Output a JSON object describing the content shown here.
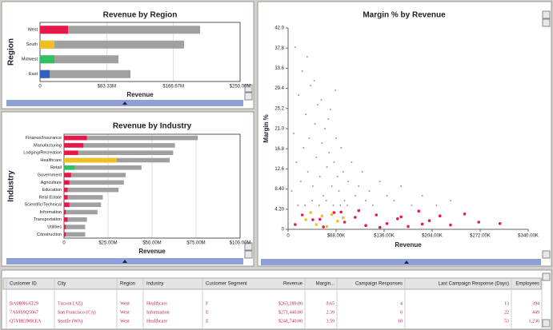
{
  "region_chart": {
    "type": "bar",
    "title": "Revenue by Region",
    "y_label": "Region",
    "x_label": "Revenue",
    "categories": [
      "West",
      "South",
      "Midwest",
      "East"
    ],
    "values": [
      200,
      180,
      98,
      113
    ],
    "color": "#a0a0a0",
    "highlight_values": [
      35,
      18,
      18,
      12
    ],
    "highlight_colors": [
      "#e8174b",
      "#f0c020",
      "#30c060",
      "#3060c0"
    ],
    "xlim": [
      0,
      250
    ],
    "xticks": [
      0,
      {
        "value": 83.33,
        "label": "$83.33M"
      },
      {
        "value": 166.67,
        "label": "$166.67M"
      },
      {
        "value": 250,
        "label": "$250.00M"
      }
    ]
  },
  "industry_chart": {
    "type": "bar",
    "title": "Revenue by Industry",
    "y_label": "Industry",
    "x_label": "Revenue",
    "categories": [
      "Finance/Insurance",
      "Manufacturing",
      "Lodging/Recreation",
      "Healthcare",
      "Retail",
      "Government",
      "Agriculture",
      "Education",
      "Real Estate",
      "Scientific/Technical",
      "Information",
      "Transportation",
      "Utilities",
      "Construction"
    ],
    "values": [
      76,
      63,
      62,
      60,
      44,
      35,
      34,
      31,
      22,
      21,
      19,
      13,
      12,
      12
    ],
    "color": "#a0a0a0",
    "highlight_values": [
      13,
      11,
      8,
      30,
      6,
      4,
      3,
      2,
      2,
      3,
      1,
      2,
      1,
      1
    ],
    "highlight_colors": [
      "#e8174b",
      "#e8174b",
      "#e8174b",
      "#f0c020",
      "#30c060",
      "#e8174b",
      "#e8174b",
      "#e8174b",
      "#e8174b",
      "#e8174b",
      "#e8174b",
      "#e8174b",
      "#e8174b",
      "#e8174b"
    ],
    "xlim": [
      0,
      100
    ],
    "xticks": [
      0,
      {
        "value": 25,
        "label": "$25.00M"
      },
      {
        "value": 50,
        "label": "$50.00M"
      },
      {
        "value": 75,
        "label": "$75.00M"
      },
      {
        "value": 100,
        "label": "$100.00M"
      }
    ]
  },
  "scatter_chart": {
    "type": "scatter",
    "title": "Margin % by Revenue",
    "y_label": "Margin %",
    "x_label": "Revenue",
    "xlim": [
      0,
      340
    ],
    "ylim": [
      0,
      42
    ],
    "xticks": [
      0,
      {
        "value": 68,
        "label": "$68.00K"
      },
      {
        "value": 136,
        "label": "$136.00K"
      },
      {
        "value": 204,
        "label": "$204.00K"
      },
      {
        "value": 272,
        "label": "$272.00K"
      },
      {
        "value": 340,
        "label": "$340.00K"
      }
    ],
    "yticks": [
      0,
      {
        "value": 4.2,
        "label": "4.20"
      },
      {
        "value": 8.4,
        "label": "8.40"
      },
      12.6,
      16.8,
      {
        "value": 21,
        "label": "21.0"
      },
      25.2,
      29.4,
      33.6,
      37.8,
      {
        "value": 42,
        "label": "42.0"
      }
    ],
    "series": [
      {
        "color": "#9a9a9a",
        "x": [
          5,
          8,
          12,
          15,
          18,
          20,
          22,
          25,
          28,
          30,
          32,
          35,
          38,
          40,
          42,
          45,
          48,
          50,
          52,
          55,
          58,
          60,
          62,
          65,
          68,
          70,
          72,
          75,
          78,
          80,
          85,
          90,
          95,
          100,
          105,
          110,
          115,
          120,
          130,
          140,
          150,
          160,
          175,
          190,
          210,
          230,
          10,
          14,
          24,
          34,
          44,
          54,
          64,
          74,
          84,
          27,
          37,
          47,
          57,
          67
        ],
        "y": [
          8,
          20,
          14,
          28,
          10,
          33,
          17,
          24,
          12,
          19,
          30,
          9,
          22,
          15,
          26,
          11,
          18,
          7,
          21,
          13,
          16,
          25,
          9,
          14,
          19,
          11,
          8,
          17,
          12,
          6,
          10,
          14,
          7,
          9,
          12,
          6,
          8,
          5,
          10,
          7,
          6,
          9,
          5,
          7,
          5,
          6,
          38,
          5,
          5,
          6,
          5,
          6,
          5,
          5,
          5,
          36,
          31,
          27,
          23,
          29
        ]
      },
      {
        "color": "#e8174b",
        "x": [
          10,
          20,
          35,
          50,
          65,
          80,
          95,
          110,
          125,
          140,
          155,
          170,
          185,
          200,
          215,
          230,
          250,
          100,
          130,
          160,
          190,
          270,
          300,
          45,
          75
        ],
        "y": [
          1,
          3,
          2,
          0.5,
          3.5,
          1.5,
          2.5,
          0.8,
          3,
          1.2,
          2.2,
          0.6,
          3.8,
          1.8,
          2.8,
          0.9,
          3.2,
          3.9,
          0.4,
          2.6,
          1.1,
          1.5,
          1.2,
          2.1,
          3.6
        ]
      },
      {
        "color": "#f0c020",
        "x": [
          25,
          32,
          40,
          48,
          55,
          62,
          70,
          78
        ],
        "y": [
          2,
          3.5,
          1,
          2.8,
          0.6,
          3.1,
          1.7,
          2.4
        ]
      }
    ]
  },
  "table": {
    "columns": [
      "Customer ID",
      "City",
      "Region",
      "Industry",
      "Customer Segment",
      "Revenue",
      "Margin...",
      "Campaign Responses",
      "Last Campaign Response (Days)",
      "Employees"
    ],
    "rows": [
      [
        "BA0BN6AT29",
        "Tucson (AZ)",
        "West",
        "Healthcare",
        "F",
        "$263,289.00",
        "0.65",
        "4",
        "13",
        "394"
      ],
      [
        "7A69S9Q5067",
        "San Francisco (CA)",
        "West",
        "Information",
        "E",
        "$271,440.00",
        "2.39",
        "6",
        "22",
        "449"
      ],
      [
        "Q5YBEJMKEA",
        "Seattle (WA)",
        "West",
        "Healthcare",
        "E",
        "$241,740.00",
        "3.59",
        "10",
        "53",
        "1,236"
      ]
    ]
  }
}
